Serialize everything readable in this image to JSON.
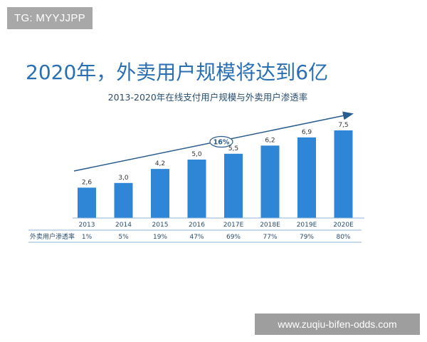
{
  "watermark_top": "TG: MYYJJPP",
  "watermark_bottom": "www.zuqiu-bifen-odds.com",
  "headline": "2020年，外卖用户规模将达到6亿",
  "chart_data": {
    "type": "bar",
    "title": "2013-2020年在线支付用户规模与外卖用户渗透率",
    "categories": [
      "2013",
      "2014",
      "2015",
      "2016",
      "2017E",
      "2018E",
      "2019E",
      "2020E"
    ],
    "values": [
      2.6,
      3.0,
      4.2,
      5.0,
      5.5,
      6.2,
      6.9,
      7.5
    ],
    "value_labels": [
      "2,6",
      "3,0",
      "4,2",
      "5,0",
      "5,5",
      "6,2",
      "6,9",
      "7,5"
    ],
    "bar_color": "#2f86d6",
    "ylim": [
      0,
      8
    ],
    "trend_label": "16%",
    "table": {
      "row_label": "外卖用户渗透率",
      "values": [
        "1%",
        "5%",
        "19%",
        "47%",
        "69%",
        "77%",
        "79%",
        "80%"
      ]
    }
  }
}
